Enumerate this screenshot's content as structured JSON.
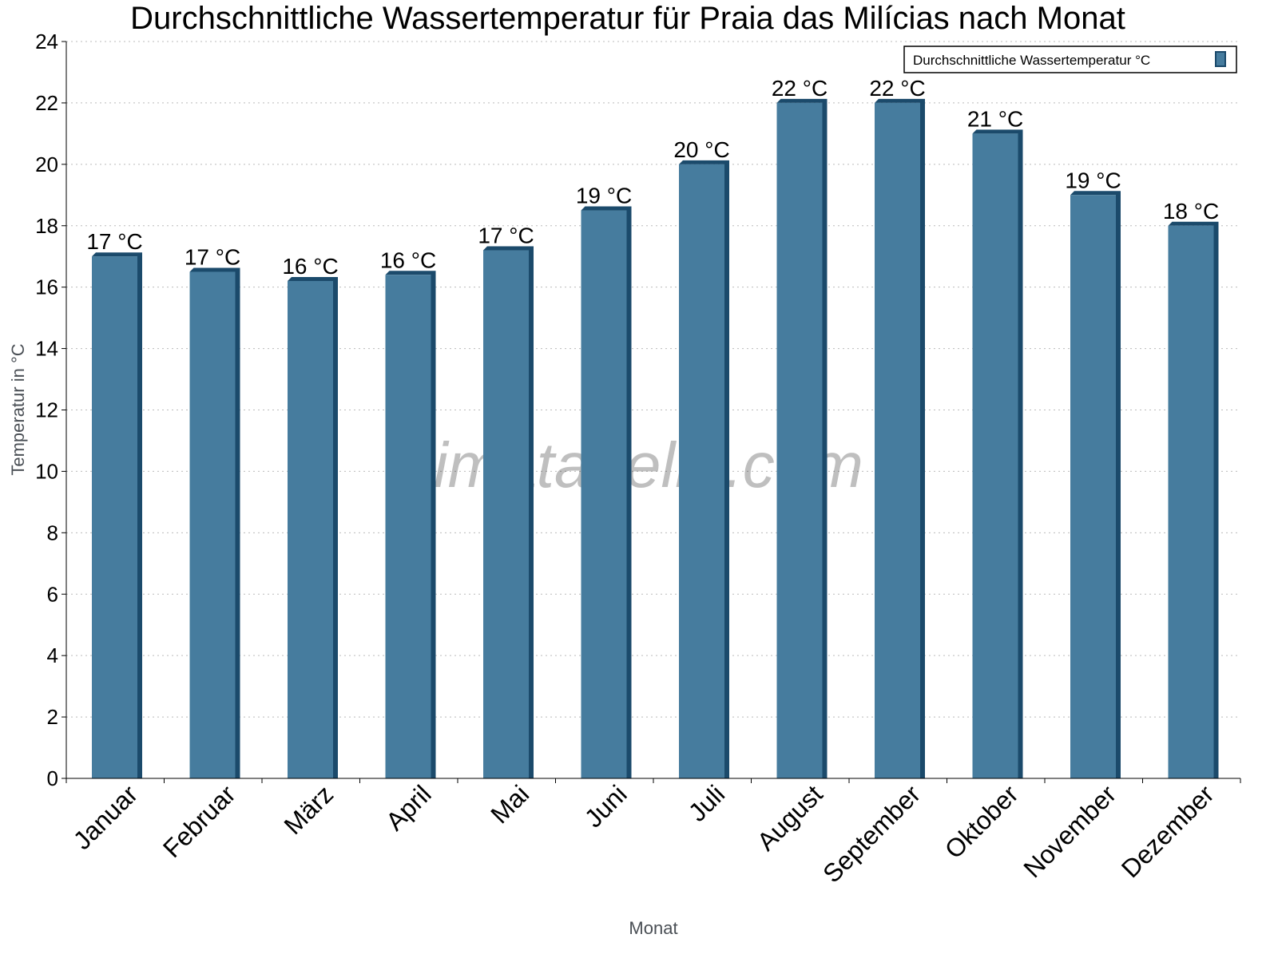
{
  "chart_data": {
    "type": "bar",
    "title": "Durchschnittliche Wassertemperatur für Praia das Milícias nach Monat",
    "xlabel": "Monat",
    "ylabel": "Temperatur in °C",
    "ylim": [
      0,
      24
    ],
    "yticks": [
      "0",
      "2",
      "4",
      "6",
      "8",
      "10",
      "12",
      "14",
      "16",
      "18",
      "20",
      "22",
      "24"
    ],
    "grid": true,
    "legend_position": "top-right",
    "categories": [
      "Januar",
      "Februar",
      "März",
      "April",
      "Mai",
      "Juni",
      "Juli",
      "August",
      "September",
      "Oktober",
      "November",
      "Dezember"
    ],
    "series": [
      {
        "name": "Durchschnittliche Wassertemperatur °C",
        "values": [
          17.0,
          16.5,
          16.2,
          16.4,
          17.2,
          18.5,
          20.0,
          22.0,
          22.0,
          21.0,
          19.0,
          18.0
        ],
        "labels": [
          "17 °C",
          "17 °C",
          "16 °C",
          "16 °C",
          "17 °C",
          "19 °C",
          "20 °C",
          "22 °C",
          "22 °C",
          "21 °C",
          "19 °C",
          "18 °C"
        ],
        "color": "#467c9e",
        "edge_color": "#1b4a6b"
      }
    ]
  },
  "watermark": "klimatabelle.com"
}
